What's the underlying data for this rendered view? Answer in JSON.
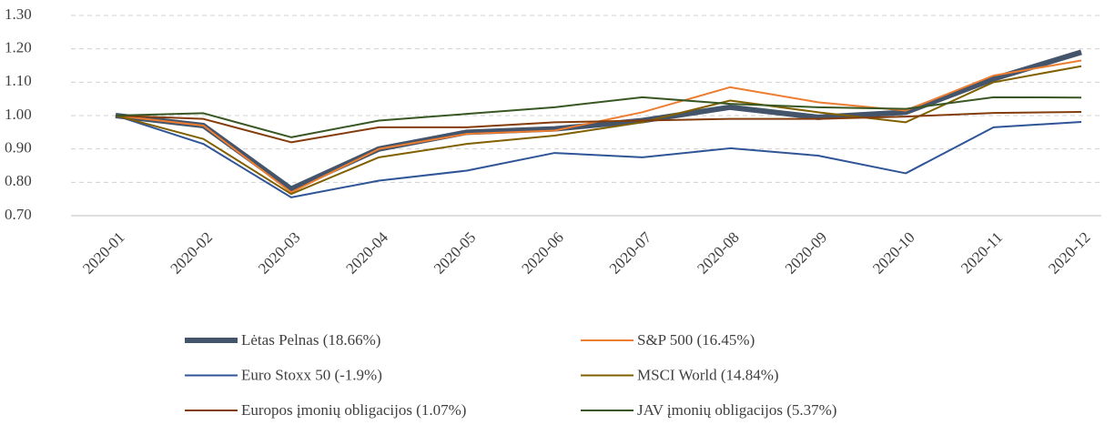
{
  "chart_data": {
    "type": "line",
    "categories": [
      "2020-01",
      "2020-02",
      "2020-03",
      "2020-04",
      "2020-05",
      "2020-06",
      "2020-07",
      "2020-08",
      "2020-09",
      "2020-10",
      "2020-11",
      "2020-12"
    ],
    "series": [
      {
        "name": "Lėtas Pelnas (18.66%)",
        "color": "#44546a",
        "values": [
          1.0,
          0.97,
          0.78,
          0.9,
          0.95,
          0.96,
          0.985,
          1.025,
          0.995,
          1.01,
          1.11,
          1.19
        ]
      },
      {
        "name": "S&P 500 (16.45%)",
        "color": "#ed7d31",
        "values": [
          1.0,
          0.97,
          0.77,
          0.9,
          0.945,
          0.955,
          1.01,
          1.085,
          1.04,
          1.015,
          1.12,
          1.165
        ]
      },
      {
        "name": "Euro Stoxx 50 (-1.9%)",
        "color": "#2f5597",
        "values": [
          1.0,
          0.915,
          0.755,
          0.805,
          0.835,
          0.888,
          0.875,
          0.902,
          0.88,
          0.827,
          0.965,
          0.981
        ]
      },
      {
        "name": "MSCI World (14.84%)",
        "color": "#806000",
        "values": [
          1.0,
          0.93,
          0.765,
          0.875,
          0.915,
          0.94,
          0.98,
          1.045,
          1.01,
          0.98,
          1.1,
          1.148
        ]
      },
      {
        "name": "Europos įmonių obligacijos (1.07%)",
        "color": "#843c0c",
        "values": [
          1.0,
          0.99,
          0.92,
          0.965,
          0.965,
          0.98,
          0.985,
          0.99,
          0.99,
          0.997,
          1.008,
          1.011
        ]
      },
      {
        "name": "JAV įmonių obligacijos (5.37%)",
        "color": "#385723",
        "values": [
          1.0,
          1.007,
          0.935,
          0.985,
          1.005,
          1.025,
          1.055,
          1.035,
          1.025,
          1.02,
          1.055,
          1.054
        ]
      }
    ],
    "ylim": [
      0.7,
      1.3
    ],
    "yticks": [
      {
        "value": 0.7,
        "label": "0.70"
      },
      {
        "value": 0.8,
        "label": "0.80"
      },
      {
        "value": 0.9,
        "label": "0.90"
      },
      {
        "value": 1.0,
        "label": "1.00"
      },
      {
        "value": 1.1,
        "label": "1.10"
      },
      {
        "value": 1.2,
        "label": "1.20"
      },
      {
        "value": 1.3,
        "label": "1.30"
      }
    ],
    "grid": true
  }
}
